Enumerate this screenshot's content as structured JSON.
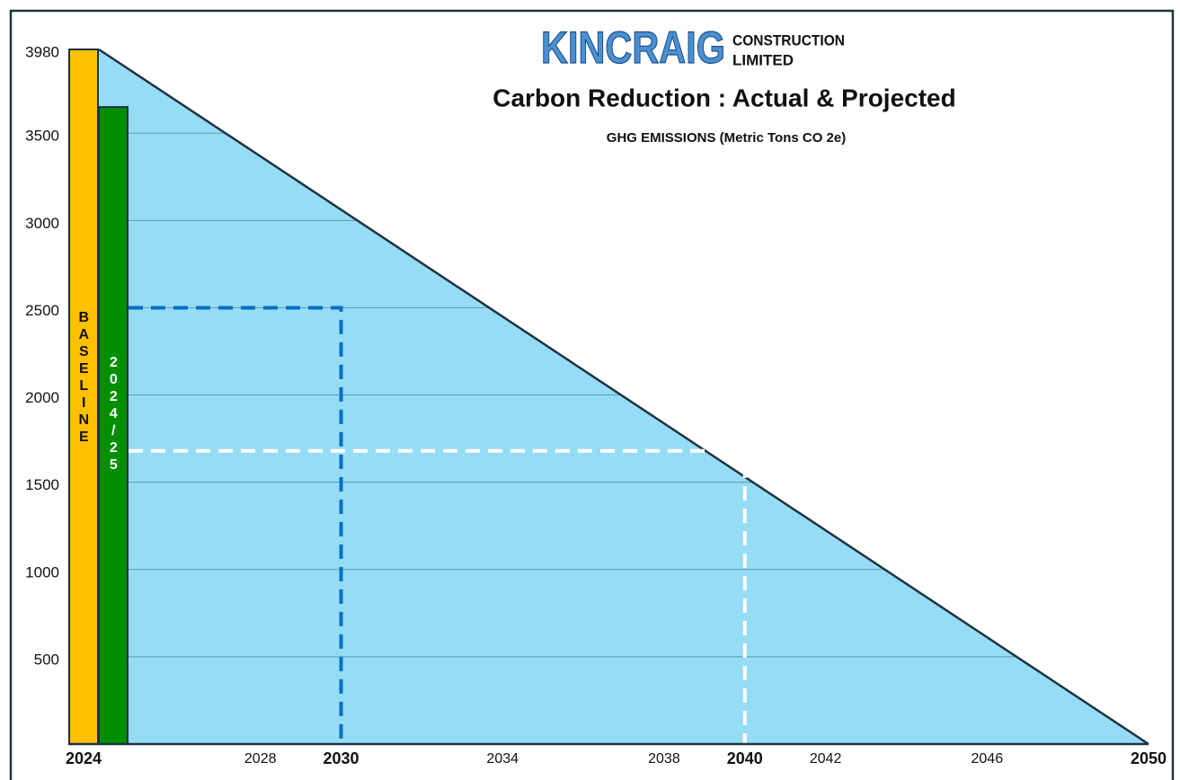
{
  "logo": {
    "name": "KINCRAIG",
    "line1": "CONSTRUCTION",
    "line2": "LIMITED"
  },
  "chart_data": {
    "type": "area",
    "title": "Carbon Reduction : Actual & Projected",
    "subtitle": "GHG EMISSIONS (Metric Tons CO 2e)",
    "ylim": [
      0,
      3980
    ],
    "yticks": [
      500,
      1000,
      1500,
      2000,
      2500,
      3000,
      3500,
      3980
    ],
    "xlim": [
      2024,
      2050
    ],
    "xticks": [
      2024,
      2028,
      2030,
      2034,
      2038,
      2040,
      2042,
      2046,
      2050
    ],
    "grid": true,
    "projection": {
      "x": [
        2024,
        2050
      ],
      "values": [
        3980,
        0
      ],
      "color": "#97dcf5"
    },
    "bars": [
      {
        "label": "BASELINE",
        "value": 3980,
        "color": "#ffc000"
      },
      {
        "label": "2024/25",
        "value": 3650,
        "color": "#008f00"
      }
    ],
    "targets": [
      {
        "year": 2030,
        "value": 2500,
        "color": "#0070c0"
      },
      {
        "year": 2040,
        "value": 1680,
        "color": "#ffffff"
      }
    ]
  }
}
